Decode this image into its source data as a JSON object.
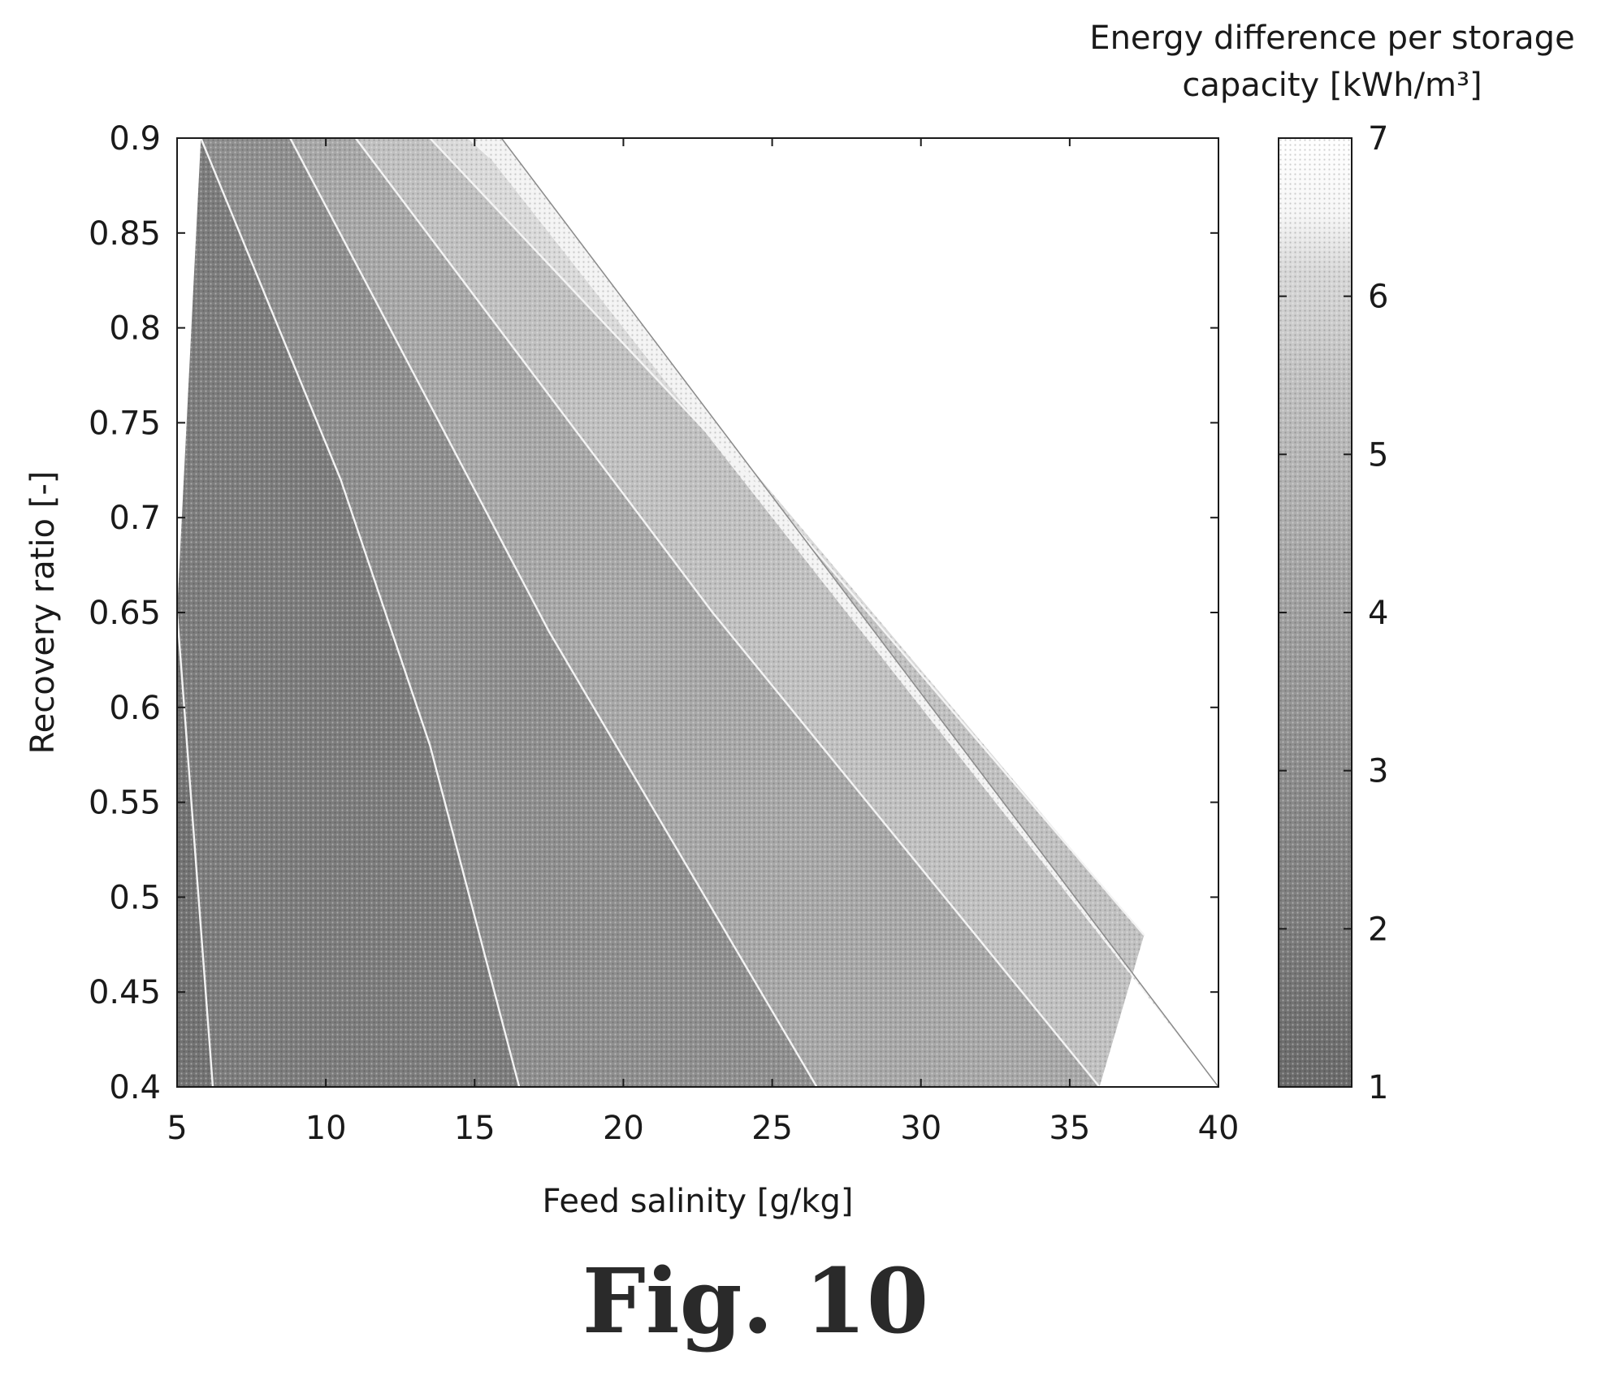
{
  "chart_data": {
    "type": "heatmap",
    "subtype": "filled-contour",
    "xlabel": "Feed salinity [g/kg]",
    "ylabel": "Recovery ratio [-]",
    "xlim": [
      5,
      40
    ],
    "ylim": [
      0.4,
      0.9
    ],
    "x_ticks": [
      "5",
      "10",
      "15",
      "20",
      "25",
      "30",
      "35",
      "40"
    ],
    "y_ticks": [
      "0.9",
      "0.85",
      "0.8",
      "0.75",
      "0.7",
      "0.65",
      "0.6",
      "0.55",
      "0.5",
      "0.45",
      "0.4"
    ],
    "colorbar": {
      "title_line1": "Energy difference per storage",
      "title_line2": "capacity  [kWh/m³]",
      "ticks": [
        "7",
        "6",
        "5",
        "4",
        "3",
        "2",
        "1"
      ],
      "range": [
        1,
        7
      ]
    },
    "feasible_region_boundary": [
      {
        "x": 15.9,
        "y": 0.9
      },
      {
        "x": 40,
        "y": 0.4
      }
    ],
    "contour_lines": [
      {
        "level": 1.5,
        "points": [
          {
            "x": 5.0,
            "y": 0.65
          },
          {
            "x": 6.2,
            "y": 0.4
          }
        ]
      },
      {
        "level": 2.0,
        "points": [
          {
            "x": 5.8,
            "y": 0.9
          },
          {
            "x": 10.5,
            "y": 0.72
          },
          {
            "x": 13.5,
            "y": 0.58
          },
          {
            "x": 16.5,
            "y": 0.4
          }
        ]
      },
      {
        "level": 3.0,
        "points": [
          {
            "x": 8.8,
            "y": 0.9
          },
          {
            "x": 17.5,
            "y": 0.64
          },
          {
            "x": 26.5,
            "y": 0.4
          }
        ]
      },
      {
        "level": 4.0,
        "points": [
          {
            "x": 11.0,
            "y": 0.9
          },
          {
            "x": 23.0,
            "y": 0.65
          },
          {
            "x": 36.0,
            "y": 0.4
          }
        ]
      },
      {
        "level": 5.0,
        "points": [
          {
            "x": 13.5,
            "y": 0.9
          },
          {
            "x": 25.5,
            "y": 0.7
          },
          {
            "x": 37.5,
            "y": 0.48
          }
        ]
      },
      {
        "level": 6.0,
        "points": [
          {
            "x": 14.8,
            "y": 0.9
          },
          {
            "x": 15.5,
            "y": 0.89
          }
        ]
      }
    ],
    "grid": false
  },
  "figure": {
    "label": "Fig. 10"
  },
  "colors": {
    "axis": "#1a1a1a",
    "background": "#ffffff",
    "low": "#6f6f6f",
    "mid": "#9c9c9c",
    "high": "#efefef"
  }
}
